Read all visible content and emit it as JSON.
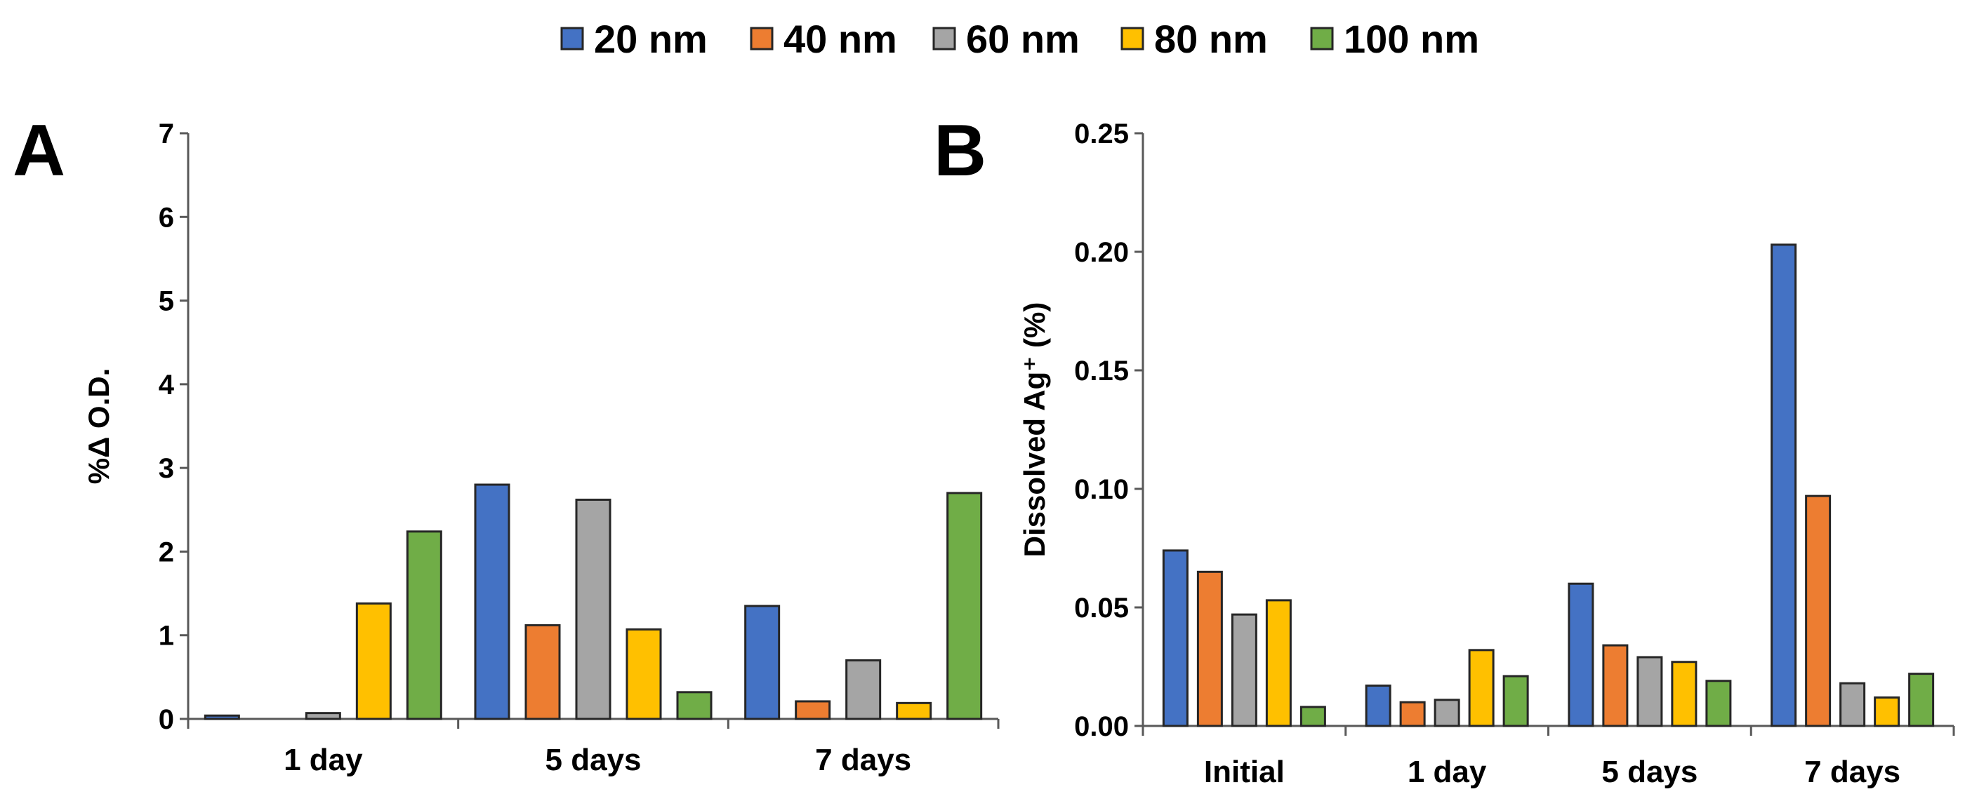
{
  "legend": {
    "items": [
      {
        "label": "20 nm",
        "color": "#4472C4"
      },
      {
        "label": "40 nm",
        "color": "#ED7D31"
      },
      {
        "label": "60 nm",
        "color": "#A5A5A5"
      },
      {
        "label": "80 nm",
        "color": "#FFC000"
      },
      {
        "label": "100 nm",
        "color": "#70AD47"
      }
    ]
  },
  "chart_data": [
    {
      "panel": "A",
      "type": "bar",
      "ylabel": "%Δ O.D.",
      "ylim": [
        0,
        7
      ],
      "yticks": [
        "0",
        "1",
        "2",
        "3",
        "4",
        "5",
        "6",
        "7"
      ],
      "yticks_values": [
        0,
        1,
        2,
        3,
        4,
        5,
        6,
        7
      ],
      "categories": [
        "1 day",
        "5 days",
        "7 days"
      ],
      "series": [
        {
          "name": "20 nm",
          "values": [
            0.04,
            2.8,
            1.35
          ]
        },
        {
          "name": "40 nm",
          "values": [
            0,
            1.12,
            0.21
          ]
        },
        {
          "name": "60 nm",
          "values": [
            0.07,
            2.62,
            0.7
          ]
        },
        {
          "name": "80 nm",
          "values": [
            1.38,
            1.07,
            0.19
          ]
        },
        {
          "name": "100 nm",
          "values": [
            2.24,
            0.32,
            2.7
          ]
        }
      ]
    },
    {
      "panel": "B",
      "type": "bar",
      "ylabel": "Dissolved Ag⁺ (%)",
      "ylim": [
        0,
        0.25
      ],
      "yticks": [
        "0.00",
        "0.05",
        "0.10",
        "0.15",
        "0.20",
        "0.25"
      ],
      "yticks_values": [
        0,
        0.05,
        0.1,
        0.15,
        0.2,
        0.25
      ],
      "categories": [
        "Initial",
        "1 day",
        "5 days",
        "7 days"
      ],
      "series": [
        {
          "name": "20 nm",
          "values": [
            0.074,
            0.017,
            0.06,
            0.203
          ]
        },
        {
          "name": "40 nm",
          "values": [
            0.065,
            0.01,
            0.034,
            0.097
          ]
        },
        {
          "name": "60 nm",
          "values": [
            0.047,
            0.011,
            0.029,
            0.018
          ]
        },
        {
          "name": "80 nm",
          "values": [
            0.053,
            0.032,
            0.027,
            0.012
          ]
        },
        {
          "name": "100 nm",
          "values": [
            0.008,
            0.021,
            0.019,
            0.022
          ]
        }
      ]
    }
  ]
}
